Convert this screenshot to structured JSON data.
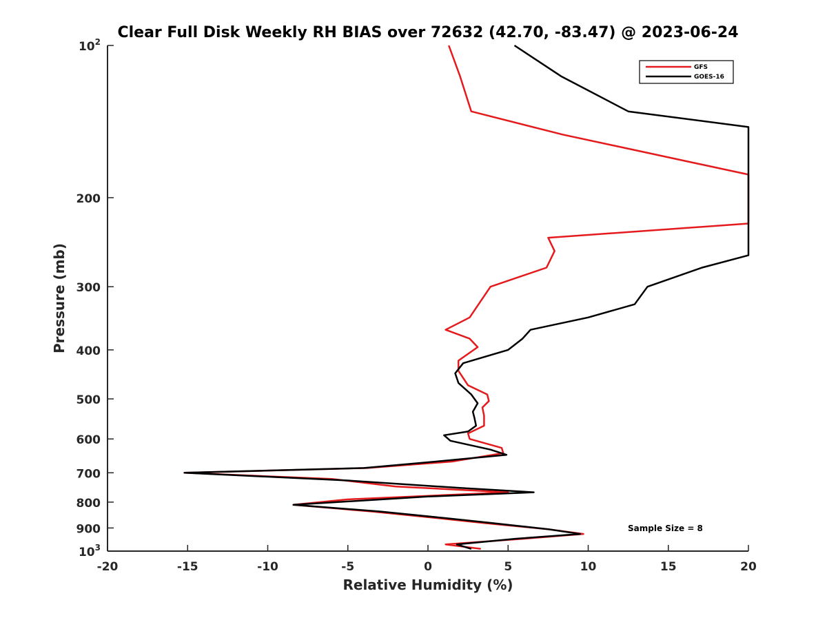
{
  "chart_data": {
    "type": "line",
    "title": "Clear Full Disk Weekly RH BIAS over 72632 (42.70, -83.47) @ 2023-06-24",
    "xlabel": "Relative Humidity (%)",
    "ylabel": "Pressure (mb)",
    "xlim": [
      -20,
      20
    ],
    "ylim": [
      100,
      1000
    ],
    "y_scale": "log",
    "y_reversed": true,
    "x_ticks": [
      "-20",
      "-15",
      "-10",
      "-5",
      "0",
      "5",
      "10",
      "15",
      "20"
    ],
    "y_ticks": [
      {
        "value": 100,
        "base": "10",
        "exp": "2"
      },
      {
        "value": 200,
        "label": "200"
      },
      {
        "value": 300,
        "label": "300"
      },
      {
        "value": 400,
        "label": "400"
      },
      {
        "value": 500,
        "label": "500"
      },
      {
        "value": 600,
        "label": "600"
      },
      {
        "value": 700,
        "label": "700"
      },
      {
        "value": 800,
        "label": "800"
      },
      {
        "value": 900,
        "label": "900"
      },
      {
        "value": 1000,
        "base": "10",
        "exp": "3"
      }
    ],
    "legend": {
      "placement": "top-right",
      "entries": [
        "GFS",
        "GOES-16"
      ]
    },
    "annotation": "Sample Size = 8",
    "grid": false,
    "series": [
      {
        "name": "GFS",
        "color": "#e41a1c",
        "points": [
          [
            1.3,
            100
          ],
          [
            2.0,
            115
          ],
          [
            2.7,
            135
          ],
          [
            8.4,
            150
          ],
          [
            20.0,
            180
          ],
          [
            20.0,
            225
          ],
          [
            7.5,
            240
          ],
          [
            7.9,
            255
          ],
          [
            7.4,
            275
          ],
          [
            3.9,
            300
          ],
          [
            3.3,
            320
          ],
          [
            2.6,
            345
          ],
          [
            1.1,
            365
          ],
          [
            2.6,
            380
          ],
          [
            3.1,
            395
          ],
          [
            1.9,
            420
          ],
          [
            1.9,
            440
          ],
          [
            2.5,
            470
          ],
          [
            3.7,
            490
          ],
          [
            3.8,
            505
          ],
          [
            3.4,
            520
          ],
          [
            3.5,
            540
          ],
          [
            3.5,
            565
          ],
          [
            2.5,
            585
          ],
          [
            2.6,
            600
          ],
          [
            4.6,
            625
          ],
          [
            4.7,
            640
          ],
          [
            1.5,
            665
          ],
          [
            -3.8,
            685
          ],
          [
            -15.2,
            700
          ],
          [
            -6.0,
            720
          ],
          [
            -2.0,
            745
          ],
          [
            5.0,
            765
          ],
          [
            -5.0,
            790
          ],
          [
            -8.4,
            810
          ],
          [
            -3.5,
            835
          ],
          [
            0.5,
            860
          ],
          [
            3.5,
            880
          ],
          [
            7.5,
            905
          ],
          [
            9.7,
            925
          ],
          [
            6.0,
            945
          ],
          [
            1.1,
            970
          ],
          [
            3.3,
            990
          ]
        ]
      },
      {
        "name": "GOES-16",
        "color": "#000000",
        "points": [
          [
            5.4,
            100
          ],
          [
            8.3,
            115
          ],
          [
            12.5,
            135
          ],
          [
            20.0,
            145
          ],
          [
            20.0,
            260
          ],
          [
            17.1,
            275
          ],
          [
            13.7,
            300
          ],
          [
            12.9,
            325
          ],
          [
            10.0,
            345
          ],
          [
            6.4,
            365
          ],
          [
            5.9,
            380
          ],
          [
            5.0,
            400
          ],
          [
            2.2,
            425
          ],
          [
            1.7,
            445
          ],
          [
            1.9,
            465
          ],
          [
            2.7,
            490
          ],
          [
            3.1,
            510
          ],
          [
            2.8,
            530
          ],
          [
            2.9,
            545
          ],
          [
            3.0,
            565
          ],
          [
            2.5,
            580
          ],
          [
            1.0,
            590
          ],
          [
            1.4,
            605
          ],
          [
            3.9,
            630
          ],
          [
            4.9,
            645
          ],
          [
            0.5,
            665
          ],
          [
            -4.0,
            685
          ],
          [
            -15.2,
            700
          ],
          [
            -5.0,
            725
          ],
          [
            2.0,
            750
          ],
          [
            6.6,
            765
          ],
          [
            0.0,
            780
          ],
          [
            -8.4,
            810
          ],
          [
            -3.0,
            835
          ],
          [
            1.0,
            860
          ],
          [
            4.0,
            880
          ],
          [
            7.5,
            905
          ],
          [
            9.5,
            925
          ],
          [
            5.5,
            945
          ],
          [
            1.8,
            970
          ],
          [
            2.7,
            990
          ]
        ]
      }
    ]
  }
}
